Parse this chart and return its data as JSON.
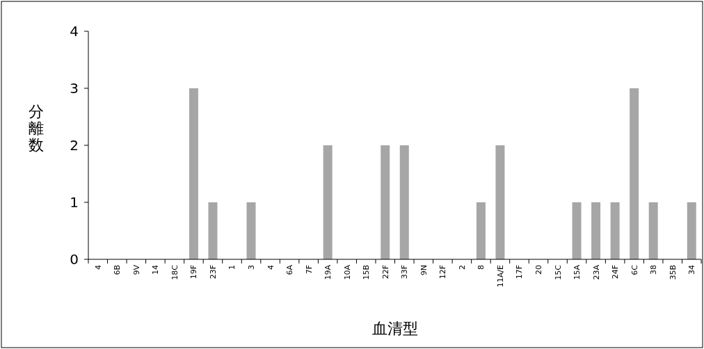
{
  "chart_data": {
    "type": "bar",
    "xlabel": "血清型",
    "ylabel": "分離数",
    "categories": [
      "4",
      "6B",
      "9V",
      "14",
      "18C",
      "19F",
      "23F",
      "1",
      "3",
      "4",
      "6A",
      "7F",
      "19A",
      "10A",
      "15B",
      "22F",
      "33F",
      "9N",
      "12F",
      "2",
      "8",
      "11A/E",
      "17F",
      "20",
      "15C",
      "15A",
      "23A",
      "24F",
      "6C",
      "38",
      "35B",
      "34"
    ],
    "values": [
      0,
      0,
      0,
      0,
      0,
      3,
      1,
      0,
      1,
      0,
      0,
      0,
      2,
      0,
      0,
      2,
      2,
      0,
      0,
      0,
      1,
      2,
      0,
      0,
      0,
      1,
      1,
      1,
      3,
      1,
      0,
      1
    ],
    "color": "#a6a6a6",
    "ylim": [
      0,
      4
    ],
    "yticks": [
      0,
      1,
      2,
      3,
      4
    ],
    "grid": false
  }
}
